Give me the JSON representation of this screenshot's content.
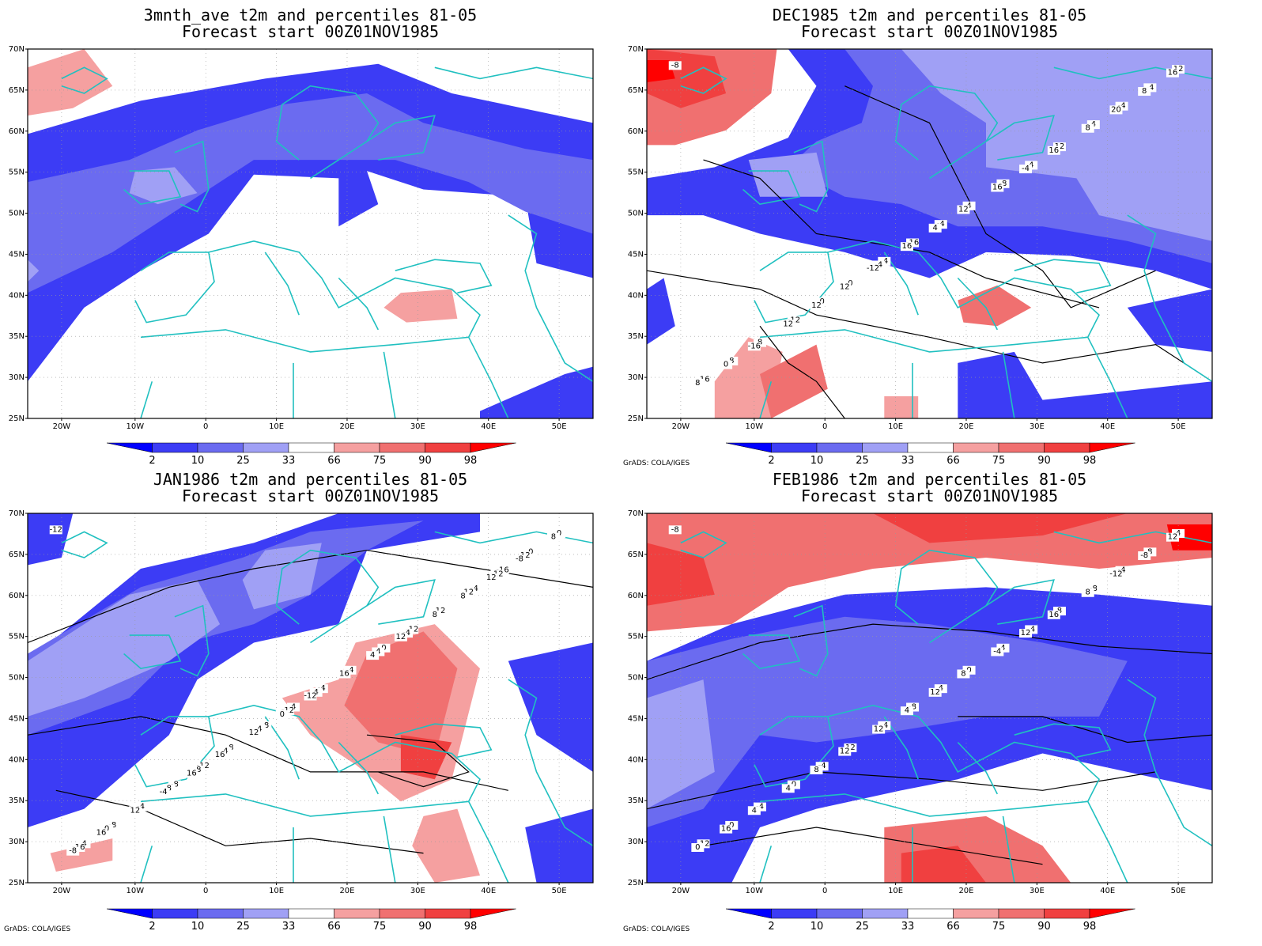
{
  "credit": "GrADS: COLA/IGES",
  "colorbar": {
    "labels": [
      "2",
      "10",
      "25",
      "33",
      "66",
      "75",
      "90",
      "98"
    ],
    "colors": [
      "#0000ff",
      "#3c3cf5",
      "#6b6bf0",
      "#a0a0f5",
      "#ffffff",
      "#f5a0a0",
      "#f07070",
      "#f04040",
      "#ff0000"
    ]
  },
  "map": {
    "lon_ticks": [
      "20W",
      "10W",
      "0",
      "10E",
      "20E",
      "30E",
      "40E",
      "50E"
    ],
    "lat_ticks": [
      "70N",
      "65N",
      "60N",
      "55N",
      "50N",
      "45N",
      "40N",
      "35N",
      "30N",
      "25N"
    ],
    "coast_color": "#20c0c0"
  },
  "panels": [
    {
      "title1": "3mnth_ave t2m and percentiles 81-05",
      "title2": "Forecast start 00Z01NOV1985",
      "contour_labels": []
    },
    {
      "title1": "DEC1985 t2m and percentiles 81-05",
      "title2": "Forecast start 00Z01NOV1985",
      "contour_labels": [
        "-8",
        "-4",
        "4",
        "-12",
        "-8",
        "-16",
        "-16",
        "-4",
        "0",
        "4",
        "8",
        "-4",
        "-4",
        "0",
        "12",
        "8",
        "4",
        "12",
        "-4",
        "8",
        "12",
        "16",
        "8",
        "16",
        "20",
        "12",
        "-4",
        "0",
        "4",
        "8",
        "12",
        "16",
        "-16",
        "12",
        "16",
        "-12"
      ]
    },
    {
      "title1": "JAN1986 t2m and percentiles 81-05",
      "title2": "Forecast start 00Z01NOV1985",
      "contour_labels": [
        "-12",
        "-8",
        "-4",
        "-8",
        "0",
        "4",
        "4",
        "-16",
        "-12",
        "-12",
        "-8",
        "-4",
        "0",
        "8",
        "12",
        "-4",
        "-4",
        "0",
        "4",
        "12",
        "8",
        "4",
        "-16",
        "-12",
        "-12",
        "-8",
        "-4",
        "0",
        "4",
        "12",
        "4",
        "8",
        "12",
        "16",
        "8",
        "12",
        "8",
        "-4",
        "4",
        "-8",
        "0",
        "12",
        "16",
        "12",
        "16",
        "-12",
        "-8",
        "16"
      ]
    },
    {
      "title1": "FEB1986 t2m and percentiles 81-05",
      "title2": "Forecast start 00Z01NOV1985",
      "contour_labels": [
        "-8",
        "-4",
        "-8",
        "0",
        "4",
        "-12",
        "-8",
        "-4",
        "-4",
        "-4",
        "0",
        "4",
        "8",
        "12",
        "8",
        "-4",
        "0",
        "4",
        "12",
        "8",
        "4",
        "-4",
        "0",
        "4",
        "-12",
        "8",
        "12",
        "16",
        "12",
        "-8",
        "12",
        "16",
        "4",
        "8",
        "12"
      ]
    }
  ]
}
